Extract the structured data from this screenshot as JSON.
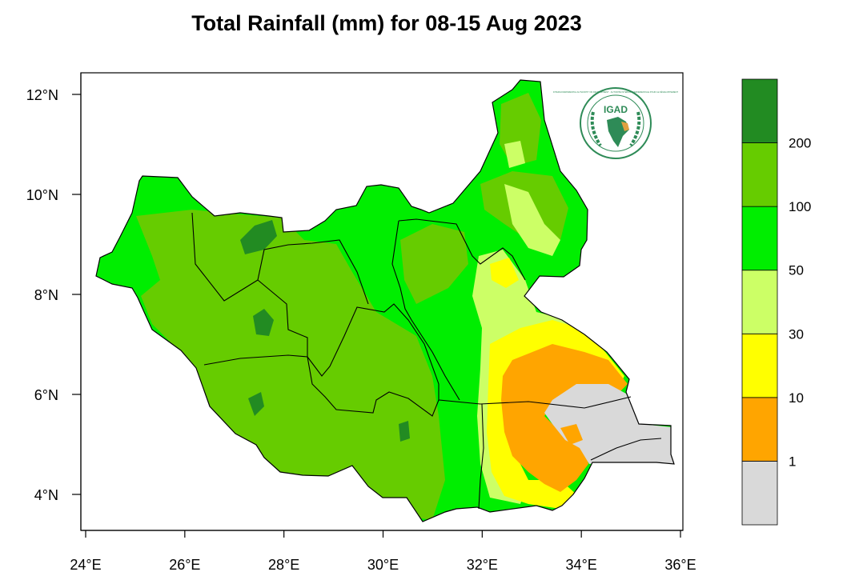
{
  "title": "Total Rainfall (mm) for 08-15 Aug 2023",
  "logo": {
    "text": "IGAD",
    "ring_text": "INTERGOVERNMENTAL AUTHORITY ON DEVELOPMENT · AUTORITÉ INTERGOUVERNEMENTALE POUR LE DÉVELOPPEMENT"
  },
  "axes": {
    "x_ticks": [
      "24°E",
      "26°E",
      "28°E",
      "30°E",
      "32°E",
      "34°E",
      "36°E"
    ],
    "y_ticks": [
      "12°N",
      "10°N",
      "8°N",
      "6°N",
      "4°N"
    ]
  },
  "legend": {
    "colors": [
      "#d9d9d9",
      "#ffa500",
      "#ffff00",
      "#ccff66",
      "#00ee00",
      "#66cc00",
      "#228b22"
    ],
    "labels": [
      "1",
      "10",
      "30",
      "50",
      "100",
      "200"
    ]
  },
  "chart_data": {
    "type": "heatmap",
    "title": "Total Rainfall (mm) for 08-15 Aug 2023",
    "units": "mm",
    "region": "South Sudan",
    "xlim": [
      24,
      36
    ],
    "ylim": [
      3.5,
      12.3
    ],
    "x_ticks": [
      24,
      26,
      28,
      30,
      32,
      34,
      36
    ],
    "y_ticks": [
      4,
      6,
      8,
      10,
      12
    ],
    "class_breaks": [
      1,
      10,
      30,
      50,
      100,
      200
    ],
    "classes": [
      "<1",
      "1-10",
      "10-30",
      "30-50",
      "50-100",
      "100-200",
      ">200"
    ]
  }
}
